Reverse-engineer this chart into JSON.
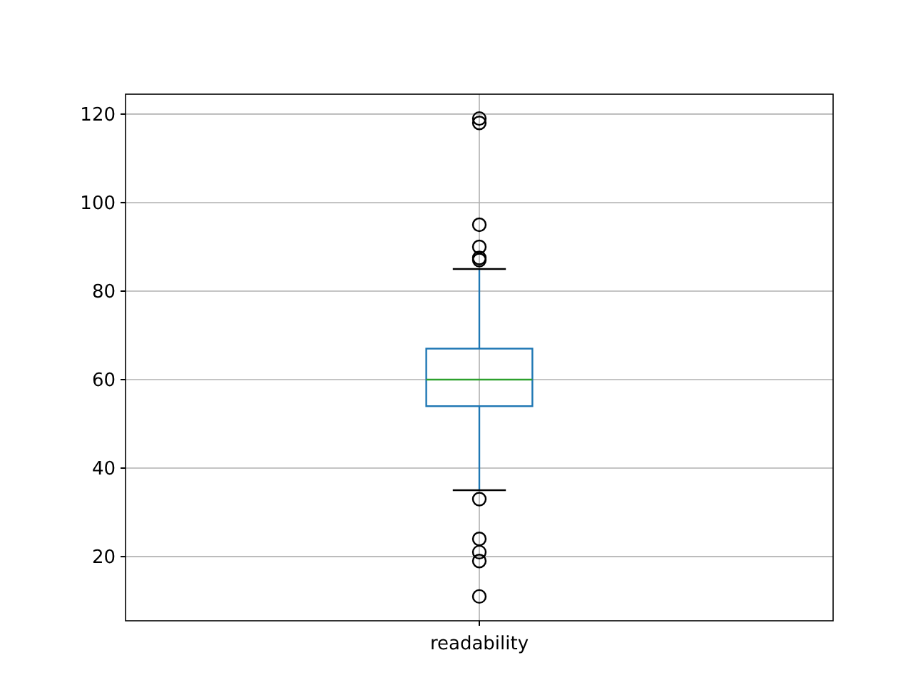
{
  "chart_data": {
    "type": "box",
    "categories": [
      "readability"
    ],
    "boxes": [
      {
        "low": 35,
        "q1": 54,
        "median": 60,
        "q3": 67,
        "high": 85,
        "outliers": [
          119,
          118,
          95,
          90,
          87.5,
          87,
          33,
          24,
          21,
          19,
          11
        ]
      }
    ],
    "ylim": [
      5.5,
      124.5
    ],
    "yticks": [
      20,
      40,
      60,
      80,
      100,
      120
    ],
    "grid": true,
    "color": "#1f77b4"
  }
}
